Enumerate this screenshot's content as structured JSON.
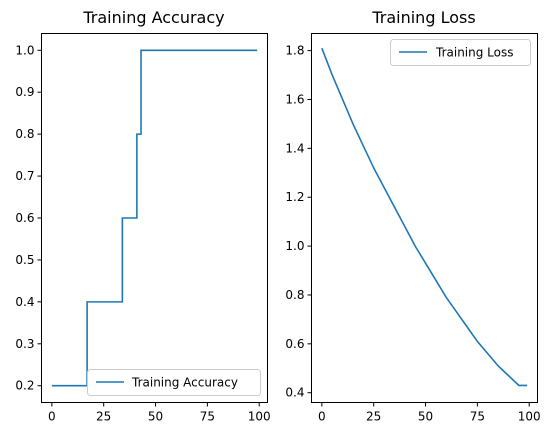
{
  "chart_data": [
    {
      "type": "line",
      "title": "Training Accuracy",
      "xlabel": "",
      "ylabel": "",
      "xlim": [
        -5,
        104
      ],
      "ylim": [
        0.16,
        1.04
      ],
      "xticks": [
        0,
        25,
        50,
        75,
        100
      ],
      "yticks": [
        0.2,
        0.3,
        0.4,
        0.5,
        0.6,
        0.7,
        0.8,
        0.9,
        1.0
      ],
      "xtick_labels": [
        "0",
        "25",
        "50",
        "75",
        "100"
      ],
      "ytick_labels": [
        "0.2",
        "0.3",
        "0.4",
        "0.5",
        "0.6",
        "0.7",
        "0.8",
        "0.9",
        "1.0"
      ],
      "grid": false,
      "legend_position": "lower-right",
      "series": [
        {
          "name": "Training Accuracy",
          "color": "#1f77b4",
          "x": [
            0,
            1,
            2,
            3,
            4,
            5,
            6,
            7,
            8,
            9,
            10,
            11,
            12,
            13,
            14,
            15,
            16,
            17,
            18,
            19,
            20,
            21,
            22,
            23,
            24,
            25,
            26,
            27,
            28,
            29,
            30,
            31,
            32,
            33,
            34,
            35,
            36,
            37,
            38,
            39,
            40,
            41,
            42,
            43,
            44,
            45,
            46,
            47,
            48,
            49,
            50,
            51,
            52,
            53,
            54,
            55,
            56,
            57,
            58,
            59,
            60,
            61,
            62,
            63,
            64,
            65,
            66,
            67,
            68,
            69,
            70,
            71,
            72,
            73,
            74,
            75,
            76,
            77,
            78,
            79,
            80,
            81,
            82,
            83,
            84,
            85,
            86,
            87,
            88,
            89,
            90,
            91,
            92,
            93,
            94,
            95,
            96,
            97,
            98,
            99
          ],
          "y": [
            0.2,
            0.2,
            0.2,
            0.2,
            0.2,
            0.2,
            0.2,
            0.2,
            0.2,
            0.2,
            0.2,
            0.2,
            0.2,
            0.2,
            0.2,
            0.2,
            0.2,
            0.4,
            0.4,
            0.4,
            0.4,
            0.4,
            0.4,
            0.4,
            0.4,
            0.4,
            0.4,
            0.4,
            0.4,
            0.4,
            0.4,
            0.4,
            0.4,
            0.4,
            0.6,
            0.6,
            0.6,
            0.6,
            0.6,
            0.6,
            0.6,
            0.8,
            0.8,
            1.0,
            1.0,
            1.0,
            1.0,
            1.0,
            1.0,
            1.0,
            1.0,
            1.0,
            1.0,
            1.0,
            1.0,
            1.0,
            1.0,
            1.0,
            1.0,
            1.0,
            1.0,
            1.0,
            1.0,
            1.0,
            1.0,
            1.0,
            1.0,
            1.0,
            1.0,
            1.0,
            1.0,
            1.0,
            1.0,
            1.0,
            1.0,
            1.0,
            1.0,
            1.0,
            1.0,
            1.0,
            1.0,
            1.0,
            1.0,
            1.0,
            1.0,
            1.0,
            1.0,
            1.0,
            1.0,
            1.0,
            1.0,
            1.0,
            1.0,
            1.0,
            1.0,
            1.0,
            1.0,
            1.0,
            1.0,
            1.0
          ]
        }
      ]
    },
    {
      "type": "line",
      "title": "Training Loss",
      "xlabel": "",
      "ylabel": "",
      "xlim": [
        -5,
        104
      ],
      "ylim": [
        0.36,
        1.87
      ],
      "xticks": [
        0,
        25,
        50,
        75,
        100
      ],
      "yticks": [
        0.4,
        0.6,
        0.8,
        1.0,
        1.2,
        1.4,
        1.6,
        1.8
      ],
      "xtick_labels": [
        "0",
        "25",
        "50",
        "75",
        "100"
      ],
      "ytick_labels": [
        "0.4",
        "0.6",
        "0.8",
        "1.0",
        "1.2",
        "1.4",
        "1.6",
        "1.8"
      ],
      "grid": false,
      "legend_position": "upper-right",
      "series": [
        {
          "name": "Training Loss",
          "color": "#1f77b4",
          "x": [
            0,
            5,
            10,
            15,
            20,
            25,
            30,
            35,
            40,
            45,
            50,
            55,
            60,
            65,
            70,
            75,
            80,
            85,
            90,
            95,
            99
          ],
          "y": [
            1.81,
            1.7,
            1.6,
            1.5,
            1.41,
            1.32,
            1.24,
            1.16,
            1.08,
            1.0,
            0.93,
            0.86,
            0.79,
            0.73,
            0.67,
            0.61,
            0.56,
            0.51,
            0.47,
            0.43,
            0.43
          ]
        }
      ]
    }
  ]
}
